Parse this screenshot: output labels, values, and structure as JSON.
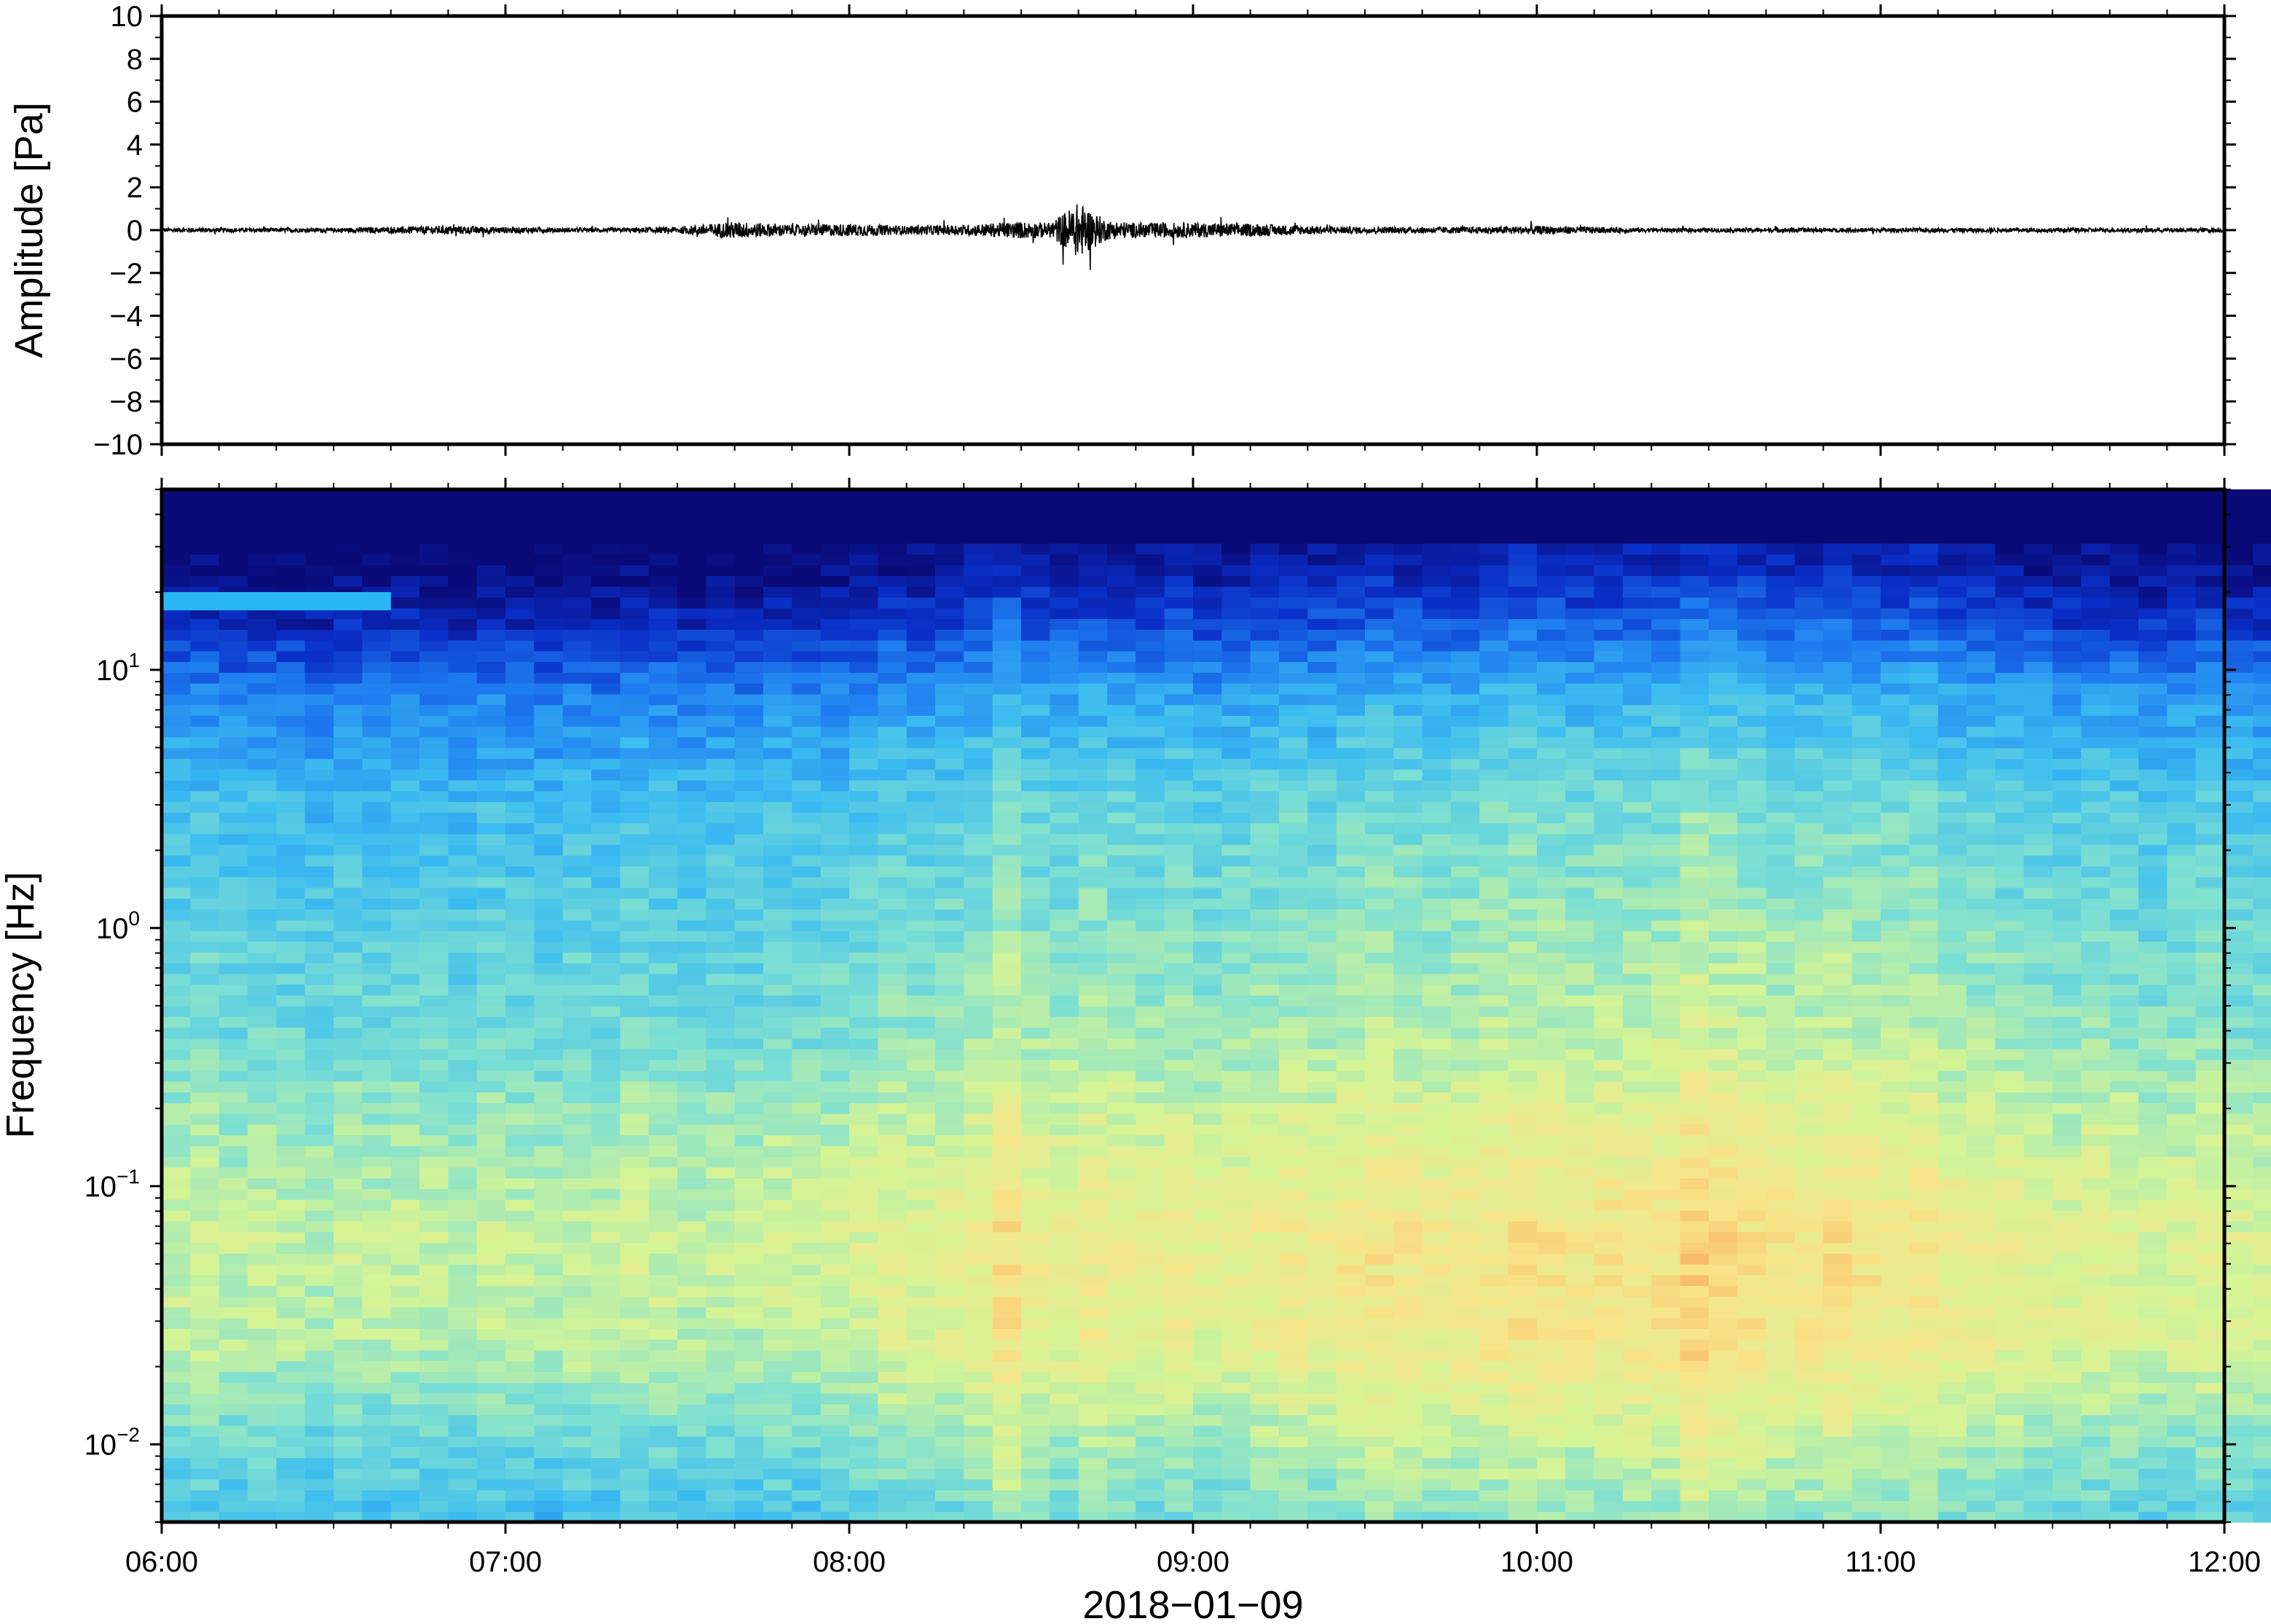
{
  "chart_data": [
    {
      "type": "line",
      "ylabel": "Amplitude [Pa]",
      "ylim": [
        -10,
        10
      ],
      "yticks": [
        10,
        8,
        6,
        4,
        2,
        0,
        -2,
        -4,
        -6,
        -8,
        -10
      ],
      "ytick_labels": [
        "10",
        "8",
        "6",
        "4",
        "2",
        "0",
        "−2",
        "−4",
        "−6",
        "−8",
        "−10"
      ],
      "x_range": [
        "06:00",
        "12:00"
      ],
      "series": [
        {
          "x": [
            "06:00",
            "06:10",
            "06:20",
            "06:30",
            "06:40",
            "06:50",
            "07:00",
            "07:10",
            "07:20",
            "07:30",
            "07:40",
            "07:50",
            "08:00",
            "08:10",
            "08:20",
            "08:30",
            "08:35",
            "08:40",
            "08:45",
            "08:50",
            "09:00",
            "09:10",
            "09:20",
            "09:30",
            "09:40",
            "09:50",
            "10:00",
            "10:10",
            "10:20",
            "10:30",
            "10:40",
            "10:50",
            "11:00",
            "11:10",
            "11:20",
            "11:30",
            "11:40",
            "11:50",
            "12:00"
          ],
          "envelope": [
            0.1,
            0.1,
            0.1,
            0.1,
            0.15,
            0.2,
            0.15,
            0.1,
            0.1,
            0.15,
            0.4,
            0.25,
            0.3,
            0.2,
            0.25,
            0.4,
            0.35,
            1.3,
            0.45,
            0.35,
            0.35,
            0.3,
            0.2,
            0.15,
            0.15,
            0.15,
            0.2,
            0.15,
            0.1,
            0.1,
            0.1,
            0.1,
            0.1,
            0.1,
            0.1,
            0.1,
            0.1,
            0.1,
            0.1
          ]
        }
      ]
    },
    {
      "type": "heatmap",
      "ylabel": "Frequency [Hz]",
      "xlabel": "2018−01−09",
      "y_scale": "log",
      "ylim": [
        0.005,
        50
      ],
      "yticks": [
        0.01,
        0.1,
        1,
        10
      ],
      "ytick_labels": [
        {
          "base": "10",
          "exp": "−2"
        },
        {
          "base": "10",
          "exp": "−1"
        },
        {
          "base": "10",
          "exp": "0"
        },
        {
          "base": "10",
          "exp": "1"
        }
      ],
      "xticks": [
        "06:00",
        "07:00",
        "08:00",
        "09:00",
        "10:00",
        "11:00",
        "12:00"
      ],
      "colormap": [
        "#0a0a78",
        "#0a2fc8",
        "#1e7df0",
        "#3cbcf0",
        "#7ee0d2",
        "#d4f496",
        "#f8e48a",
        "#f8ad5e",
        "#ef5f3c"
      ],
      "column_minutes": 5,
      "time_activity": [
        0.3,
        0.35,
        0.25,
        0.3,
        0.25,
        0.2,
        0.3,
        0.25,
        0.3,
        0.25,
        0.2,
        0.3,
        0.25,
        0.2,
        0.3,
        0.25,
        0.35,
        0.3,
        0.25,
        0.3,
        0.25,
        0.35,
        0.3,
        0.35,
        0.4,
        0.5,
        0.45,
        0.5,
        0.6,
        0.8,
        0.6,
        0.55,
        0.65,
        0.6,
        0.55,
        0.6,
        0.5,
        0.55,
        0.6,
        0.65,
        0.6,
        0.7,
        0.75,
        0.7,
        0.65,
        0.7,
        0.75,
        0.8,
        0.75,
        0.7,
        0.75,
        0.75,
        0.75,
        0.95,
        0.85,
        0.8,
        0.75,
        0.75,
        0.8,
        0.75,
        0.7,
        0.75,
        0.6,
        0.6,
        0.55,
        0.5,
        0.45,
        0.5,
        0.45,
        0.4,
        0.45,
        0.5,
        0.4,
        0.4,
        0.35,
        0.45,
        0.45,
        0.55,
        0.5,
        0.4,
        0.35,
        0.4,
        0.35,
        0.3,
        0.25,
        0.3,
        0.25,
        0.2,
        0.25,
        0.2,
        0.25,
        0.25,
        0.2,
        0.25,
        0.2,
        0.3,
        0.25,
        0.2,
        0.25,
        0.2,
        0.25,
        0.3,
        0.25,
        0.2,
        0.25,
        0.3,
        0.35,
        0.3,
        0.25,
        0.3,
        0.25,
        0.3,
        0.25,
        0.2,
        0.25,
        0.3,
        0.25,
        0.25,
        0.2,
        0.25,
        0.3,
        0.25
      ],
      "annotation_band": {
        "x_range": [
          "06:00",
          "06:40"
        ],
        "freq_hz": [
          17,
          20
        ],
        "color": "#29b6f6"
      }
    }
  ]
}
